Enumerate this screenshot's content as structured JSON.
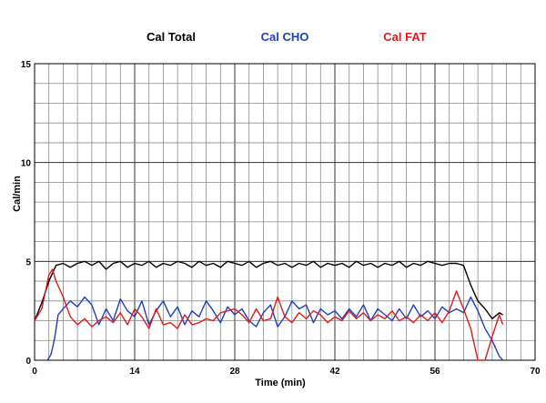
{
  "chart_data": {
    "type": "line",
    "xlabel": "Time (min)",
    "ylabel": "Cal/min",
    "xlim": [
      0,
      70
    ],
    "ylim": [
      0,
      15
    ],
    "x_ticks": [
      0,
      14,
      28,
      42,
      56,
      70
    ],
    "y_ticks": [
      0,
      5,
      10,
      15
    ],
    "x_minor_step": 2,
    "y_minor_step": 1,
    "grid": true,
    "legend_position": "top",
    "series": [
      {
        "name": "Cal Total",
        "color": "#000000",
        "points": [
          [
            0,
            2.0
          ],
          [
            1,
            2.9
          ],
          [
            2,
            4.0
          ],
          [
            3,
            4.8
          ],
          [
            4,
            4.9
          ],
          [
            5,
            4.7
          ],
          [
            6,
            4.9
          ],
          [
            7,
            5.0
          ],
          [
            8,
            4.8
          ],
          [
            9,
            5.0
          ],
          [
            10,
            4.6
          ],
          [
            11,
            4.9
          ],
          [
            12,
            5.0
          ],
          [
            13,
            4.7
          ],
          [
            14,
            4.9
          ],
          [
            15,
            4.8
          ],
          [
            16,
            5.0
          ],
          [
            17,
            4.7
          ],
          [
            18,
            4.9
          ],
          [
            19,
            4.8
          ],
          [
            20,
            5.0
          ],
          [
            21,
            4.9
          ],
          [
            22,
            4.7
          ],
          [
            23,
            5.0
          ],
          [
            24,
            4.8
          ],
          [
            25,
            4.9
          ],
          [
            26,
            4.7
          ],
          [
            27,
            5.0
          ],
          [
            28,
            4.9
          ],
          [
            29,
            4.8
          ],
          [
            30,
            5.0
          ],
          [
            31,
            4.7
          ],
          [
            32,
            4.9
          ],
          [
            33,
            5.0
          ],
          [
            34,
            4.8
          ],
          [
            35,
            4.9
          ],
          [
            36,
            4.7
          ],
          [
            37,
            4.9
          ],
          [
            38,
            4.8
          ],
          [
            39,
            5.0
          ],
          [
            40,
            4.7
          ],
          [
            41,
            4.9
          ],
          [
            42,
            4.8
          ],
          [
            43,
            4.9
          ],
          [
            44,
            4.7
          ],
          [
            45,
            5.0
          ],
          [
            46,
            4.8
          ],
          [
            47,
            4.9
          ],
          [
            48,
            4.7
          ],
          [
            49,
            4.9
          ],
          [
            50,
            4.8
          ],
          [
            51,
            5.0
          ],
          [
            52,
            4.7
          ],
          [
            53,
            4.9
          ],
          [
            54,
            4.8
          ],
          [
            55,
            5.0
          ],
          [
            56,
            4.9
          ],
          [
            57,
            4.8
          ],
          [
            58,
            4.9
          ],
          [
            59,
            4.9
          ],
          [
            60,
            4.8
          ],
          [
            61,
            3.8
          ],
          [
            62,
            3.0
          ],
          [
            63,
            2.6
          ],
          [
            64,
            2.1
          ],
          [
            65,
            2.4
          ],
          [
            65.5,
            2.3
          ]
        ]
      },
      {
        "name": "Cal CHO",
        "color": "#1f3fbf",
        "points": [
          [
            1.8,
            0.0
          ],
          [
            2.3,
            0.3
          ],
          [
            2.8,
            1.1
          ],
          [
            3.3,
            2.3
          ],
          [
            4,
            2.6
          ],
          [
            5,
            3.0
          ],
          [
            6,
            2.7
          ],
          [
            7,
            3.2
          ],
          [
            8,
            2.8
          ],
          [
            9,
            1.8
          ],
          [
            10,
            2.6
          ],
          [
            11,
            2.0
          ],
          [
            12,
            3.1
          ],
          [
            13,
            2.5
          ],
          [
            14,
            2.2
          ],
          [
            15,
            3.0
          ],
          [
            16,
            1.8
          ],
          [
            17,
            2.5
          ],
          [
            18,
            3.0
          ],
          [
            19,
            2.2
          ],
          [
            20,
            2.7
          ],
          [
            21,
            1.8
          ],
          [
            22,
            2.5
          ],
          [
            23,
            2.2
          ],
          [
            24,
            3.0
          ],
          [
            25,
            2.5
          ],
          [
            26,
            1.9
          ],
          [
            27,
            2.7
          ],
          [
            28,
            2.3
          ],
          [
            29,
            2.6
          ],
          [
            30,
            2.0
          ],
          [
            31,
            1.7
          ],
          [
            32,
            2.4
          ],
          [
            33,
            2.8
          ],
          [
            34,
            1.7
          ],
          [
            35,
            2.2
          ],
          [
            36,
            3.0
          ],
          [
            37,
            2.6
          ],
          [
            38,
            2.8
          ],
          [
            39,
            1.9
          ],
          [
            40,
            2.6
          ],
          [
            41,
            2.3
          ],
          [
            42,
            2.5
          ],
          [
            43,
            2.1
          ],
          [
            44,
            2.6
          ],
          [
            45,
            2.2
          ],
          [
            46,
            2.8
          ],
          [
            47,
            2.0
          ],
          [
            48,
            2.6
          ],
          [
            49,
            2.3
          ],
          [
            50,
            2.0
          ],
          [
            51,
            2.6
          ],
          [
            52,
            2.1
          ],
          [
            53,
            2.8
          ],
          [
            54,
            2.2
          ],
          [
            55,
            2.5
          ],
          [
            56,
            2.1
          ],
          [
            57,
            2.7
          ],
          [
            58,
            2.4
          ],
          [
            59,
            2.6
          ],
          [
            60,
            2.4
          ],
          [
            61,
            3.2
          ],
          [
            62,
            2.5
          ],
          [
            63,
            1.6
          ],
          [
            64,
            1.0
          ],
          [
            65,
            0.2
          ],
          [
            65.5,
            0.0
          ]
        ]
      },
      {
        "name": "Cal FAT",
        "color": "#e01b1b",
        "points": [
          [
            0,
            2.0
          ],
          [
            1,
            2.6
          ],
          [
            2,
            4.3
          ],
          [
            2.5,
            4.6
          ],
          [
            3,
            4.0
          ],
          [
            4,
            3.2
          ],
          [
            5,
            2.2
          ],
          [
            6,
            1.8
          ],
          [
            7,
            2.1
          ],
          [
            8,
            1.7
          ],
          [
            9,
            2.0
          ],
          [
            10,
            2.2
          ],
          [
            11,
            1.9
          ],
          [
            12,
            2.4
          ],
          [
            13,
            1.8
          ],
          [
            14,
            2.6
          ],
          [
            15,
            2.2
          ],
          [
            16,
            1.6
          ],
          [
            17,
            2.6
          ],
          [
            18,
            1.8
          ],
          [
            19,
            1.9
          ],
          [
            20,
            1.6
          ],
          [
            21,
            2.3
          ],
          [
            22,
            1.8
          ],
          [
            23,
            1.9
          ],
          [
            24,
            2.1
          ],
          [
            25,
            2.0
          ],
          [
            26,
            2.4
          ],
          [
            27,
            2.5
          ],
          [
            28,
            2.6
          ],
          [
            29,
            2.3
          ],
          [
            30,
            1.9
          ],
          [
            31,
            2.6
          ],
          [
            32,
            2.0
          ],
          [
            33,
            2.1
          ],
          [
            34,
            3.2
          ],
          [
            35,
            2.2
          ],
          [
            36,
            1.9
          ],
          [
            37,
            2.4
          ],
          [
            38,
            2.1
          ],
          [
            39,
            2.5
          ],
          [
            40,
            2.3
          ],
          [
            41,
            1.9
          ],
          [
            42,
            2.2
          ],
          [
            43,
            2.0
          ],
          [
            44,
            2.5
          ],
          [
            45,
            2.1
          ],
          [
            46,
            2.4
          ],
          [
            47,
            2.0
          ],
          [
            48,
            2.3
          ],
          [
            49,
            2.1
          ],
          [
            50,
            2.5
          ],
          [
            51,
            2.0
          ],
          [
            52,
            2.2
          ],
          [
            53,
            1.9
          ],
          [
            54,
            2.3
          ],
          [
            55,
            2.0
          ],
          [
            56,
            2.4
          ],
          [
            57,
            1.9
          ],
          [
            58,
            2.5
          ],
          [
            59,
            3.5
          ],
          [
            60,
            2.6
          ],
          [
            61,
            1.6
          ],
          [
            62,
            0.0
          ],
          [
            63,
            0.0
          ],
          [
            64,
            1.2
          ],
          [
            65,
            2.3
          ],
          [
            65.5,
            1.8
          ]
        ]
      }
    ]
  }
}
